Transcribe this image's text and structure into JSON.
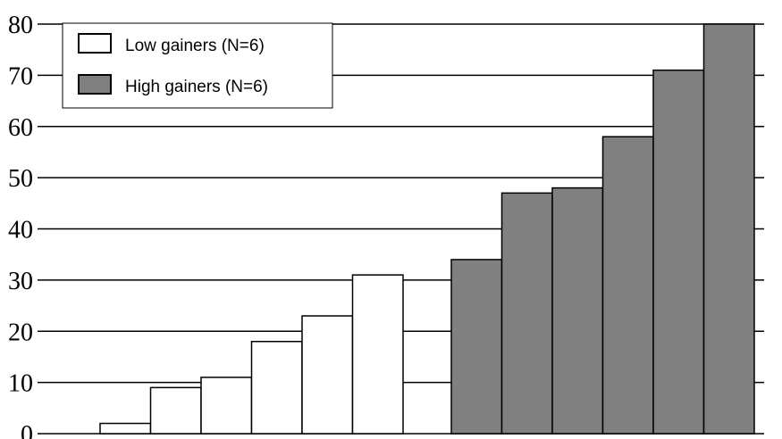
{
  "chart_data": {
    "type": "bar",
    "title": "",
    "xlabel": "",
    "ylabel": "",
    "ylim": [
      0,
      80
    ],
    "yticks": [
      "0",
      "10",
      "20",
      "30",
      "40",
      "50",
      "60",
      "70",
      "80"
    ],
    "grid": true,
    "legend_position": "top-left",
    "series": [
      {
        "name": "Low gainers (N=6)",
        "color": "#ffffff",
        "values": [
          2,
          9,
          11,
          18,
          23,
          31
        ]
      },
      {
        "name": "High gainers (N=6)",
        "color": "#808080",
        "values": [
          34,
          47,
          48,
          58,
          71,
          80
        ]
      }
    ]
  }
}
